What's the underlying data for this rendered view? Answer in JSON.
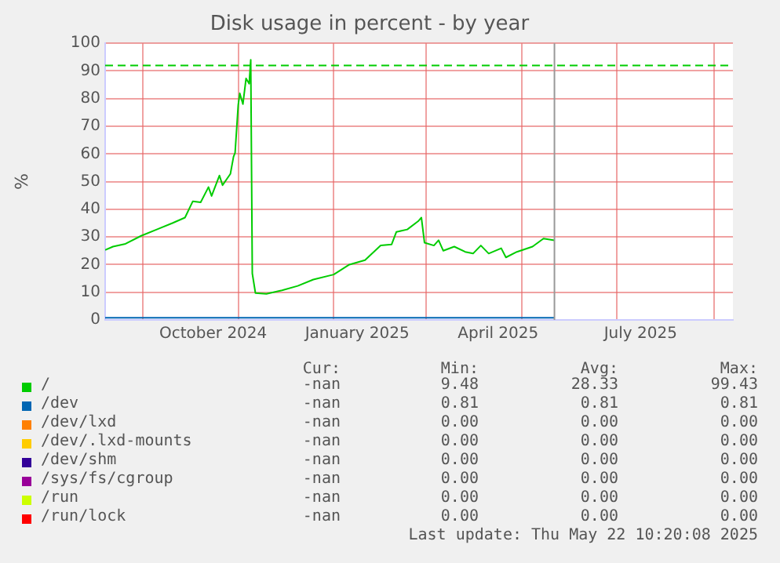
{
  "chart_data": {
    "type": "line",
    "title": "Disk usage in percent - by year",
    "ylabel": "%",
    "xlim": [
      "2024-08-08",
      "2025-09-13"
    ],
    "ylim": [
      0,
      100
    ],
    "yticks": [
      0,
      10,
      20,
      30,
      40,
      50,
      60,
      70,
      80,
      90,
      100
    ],
    "xticks": [
      {
        "value": "2024-09-01",
        "label": null
      },
      {
        "value": "2024-10-16",
        "label": "October 2024"
      },
      {
        "value": "2024-11-01",
        "label": null
      },
      {
        "value": "2025-01-01",
        "label": null
      },
      {
        "value": "2025-01-16",
        "label": "January 2025"
      },
      {
        "value": "2025-03-01",
        "label": null
      },
      {
        "value": "2025-04-16",
        "label": "April 2025"
      },
      {
        "value": "2025-05-01",
        "label": null
      },
      {
        "value": "2025-07-01",
        "label": null
      },
      {
        "value": "2025-07-16",
        "label": "July 2025"
      },
      {
        "value": "2025-09-01",
        "label": null
      }
    ],
    "grid": true,
    "legend": "bottom",
    "series": [
      {
        "name": "/",
        "color": "#00cc00",
        "x": [
          "2024-08-08",
          "2024-08-13",
          "2024-08-21",
          "2024-08-31",
          "2024-09-10",
          "2024-09-20",
          "2024-09-28",
          "2024-10-03",
          "2024-10-08",
          "2024-10-13",
          "2024-10-15",
          "2024-10-20",
          "2024-10-22",
          "2024-10-27",
          "2024-10-29",
          "2024-10-30",
          "2024-11-01",
          "2024-11-02",
          "2024-11-04",
          "2024-11-06",
          "2024-11-08",
          "2024-11-09",
          "2024-11-10",
          "2024-11-12",
          "2024-11-19",
          "2024-11-29",
          "2024-12-09",
          "2024-12-19",
          "2025-01-01",
          "2025-01-11",
          "2025-01-21",
          "2025-01-31",
          "2025-02-07",
          "2025-02-10",
          "2025-02-17",
          "2025-02-24",
          "2025-02-26",
          "2025-02-28",
          "2025-03-06",
          "2025-03-09",
          "2025-03-12",
          "2025-03-19",
          "2025-03-26",
          "2025-03-31",
          "2025-04-05",
          "2025-04-10",
          "2025-04-18",
          "2025-04-21",
          "2025-04-28",
          "2025-05-08",
          "2025-05-15",
          "2025-05-22"
        ],
        "values": [
          25.3,
          26.5,
          27.5,
          30.4,
          32.7,
          35,
          37,
          42.9,
          42.5,
          48,
          44.8,
          52.2,
          48.7,
          52.8,
          59,
          60.4,
          77.7,
          81.9,
          78,
          87.3,
          85.4,
          94,
          16.8,
          9.7,
          9.4,
          10.7,
          12.3,
          14.6,
          16.4,
          20,
          21.6,
          26.9,
          27.3,
          31.8,
          32.7,
          35.7,
          37,
          27.9,
          26.9,
          28.8,
          25,
          26.5,
          24.6,
          24,
          26.9,
          24,
          25.9,
          22.6,
          24.6,
          26.5,
          29.4,
          28.8
        ]
      },
      {
        "name": "/dev",
        "color": "#0066b3",
        "x": [
          "2024-08-08",
          "2025-05-22"
        ],
        "values": [
          0.81,
          0.81
        ]
      },
      {
        "name": "/dev/lxd",
        "color": "#ff8000"
      },
      {
        "name": "/dev/.lxd-mounts",
        "color": "#ffcc00"
      },
      {
        "name": "/dev/shm",
        "color": "#330099"
      },
      {
        "name": "/sys/fs/cgroup",
        "color": "#990099"
      },
      {
        "name": "/run",
        "color": "#ccff00"
      },
      {
        "name": "/run/lock",
        "color": "#ff0000"
      }
    ],
    "ref_lines": [
      {
        "axis": "y",
        "value": 92,
        "color": "#00cc00",
        "line_style": "dashed"
      },
      {
        "axis": "x",
        "value": "2025-05-22",
        "color": "#999999",
        "line_style": "solid"
      }
    ],
    "annotations": [
      "Cur:",
      "Min:",
      "Avg:",
      "Max:",
      "-nan",
      "9.48",
      "28.33",
      "99.43",
      "-nan",
      "0.81",
      "0.81",
      "0.81",
      "-nan",
      "0.00",
      "0.00",
      "0.00",
      "-nan",
      "0.00",
      "0.00",
      "0.00",
      "-nan",
      "0.00",
      "0.00",
      "0.00",
      "-nan",
      "0.00",
      "0.00",
      "0.00",
      "-nan",
      "0.00",
      "0.00",
      "0.00",
      "-nan",
      "0.00",
      "0.00",
      "0.00",
      "Last update: Thu May 22 10:20:08 2025"
    ]
  }
}
